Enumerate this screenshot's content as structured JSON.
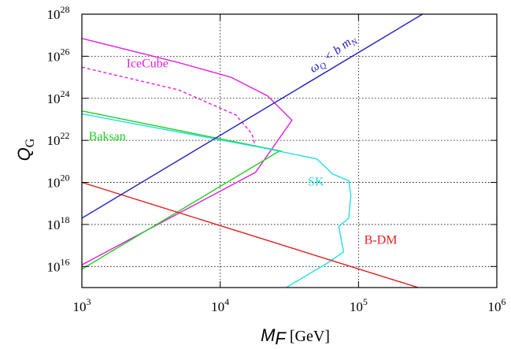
{
  "chart_data": {
    "type": "line",
    "xscale": "log",
    "yscale": "log",
    "xlim": [
      1000,
      1000000
    ],
    "ylim": [
      1000000000000000.0,
      1e+28
    ],
    "grid": true,
    "xlabel": {
      "main": "M",
      "sub": "F",
      "unit": " [GeV]"
    },
    "ylabel": {
      "main": "Q",
      "sub": "G"
    },
    "xticks": [
      {
        "value": 1000,
        "base": "10",
        "exp": "3"
      },
      {
        "value": 10000,
        "base": "10",
        "exp": "4"
      },
      {
        "value": 100000,
        "base": "10",
        "exp": "5"
      },
      {
        "value": 1000000,
        "base": "10",
        "exp": "6"
      }
    ],
    "yticks": [
      {
        "value": 1e+16,
        "base": "10",
        "exp": "16"
      },
      {
        "value": 1e+18,
        "base": "10",
        "exp": "18"
      },
      {
        "value": 1e+20,
        "base": "10",
        "exp": "20"
      },
      {
        "value": 1e+22,
        "base": "10",
        "exp": "22"
      },
      {
        "value": 1e+24,
        "base": "10",
        "exp": "24"
      },
      {
        "value": 1e+26,
        "base": "10",
        "exp": "26"
      },
      {
        "value": 1e+28,
        "base": "10",
        "exp": "28"
      }
    ],
    "series": [
      {
        "name": "IceCube",
        "color": "#e020e0",
        "dash": false,
        "label_at": [
          2100,
          3e+25
        ],
        "points": [
          [
            1000,
            7e+26
          ],
          [
            5000,
            5e+25
          ],
          [
            12000,
            1e+25
          ],
          [
            22000,
            1.3e+24
          ],
          [
            33000,
            9e+22
          ],
          [
            18000,
            3e+20
          ],
          [
            1000,
            1.2e+16
          ]
        ]
      },
      {
        "name": "",
        "color": "#e020e0",
        "dash": true,
        "points": [
          [
            1000,
            3e+25
          ],
          [
            5000,
            2.5e+24
          ],
          [
            13000,
            1.6e+23
          ],
          [
            17000,
            2e+22
          ],
          [
            18000,
            5e+21
          ]
        ]
      },
      {
        "name": "Baksan",
        "color": "#20d020",
        "dash": false,
        "label_at": [
          1120,
          1e+22
        ],
        "points": [
          [
            1000,
            2.5e+23
          ],
          [
            28000,
            3e+21
          ],
          [
            27000,
            3.2e+21
          ],
          [
            1000,
            7500000000000000.0
          ]
        ]
      },
      {
        "name": "SK",
        "color": "#20e0e0",
        "dash": false,
        "label_at": [
          43000,
          7e+19
        ],
        "points": [
          [
            1000,
            1.8e+23
          ],
          [
            20000,
            4.5e+21
          ],
          [
            50000,
            1.3e+21
          ],
          [
            65000,
            2.5e+20
          ],
          [
            85000,
            1.2e+20
          ],
          [
            88000,
            2.5e+19
          ],
          [
            85000,
            2e+18
          ],
          [
            72000,
            8e+17
          ],
          [
            78000,
            5e+16
          ],
          [
            60000,
            1.5e+16
          ],
          [
            30000,
            1000000000000000.0
          ]
        ]
      },
      {
        "name": "B-DM",
        "color": "#e02020",
        "dash": false,
        "label_at": [
          110000,
          1.2e+17
        ],
        "points": [
          [
            1000,
            1e+20
          ],
          [
            270000,
            1000000000000000.0
          ]
        ]
      },
      {
        "name": "ω",
        "sub": "Q",
        "rest": " < b m",
        "sub2": "N",
        "color": "#2020c0",
        "dash": false,
        "label_at": [
          47000,
          1.6e+25
        ],
        "label_rotate": -37,
        "points": [
          [
            1000,
            2e+18
          ],
          [
            290000,
            1e+28
          ]
        ]
      }
    ]
  }
}
